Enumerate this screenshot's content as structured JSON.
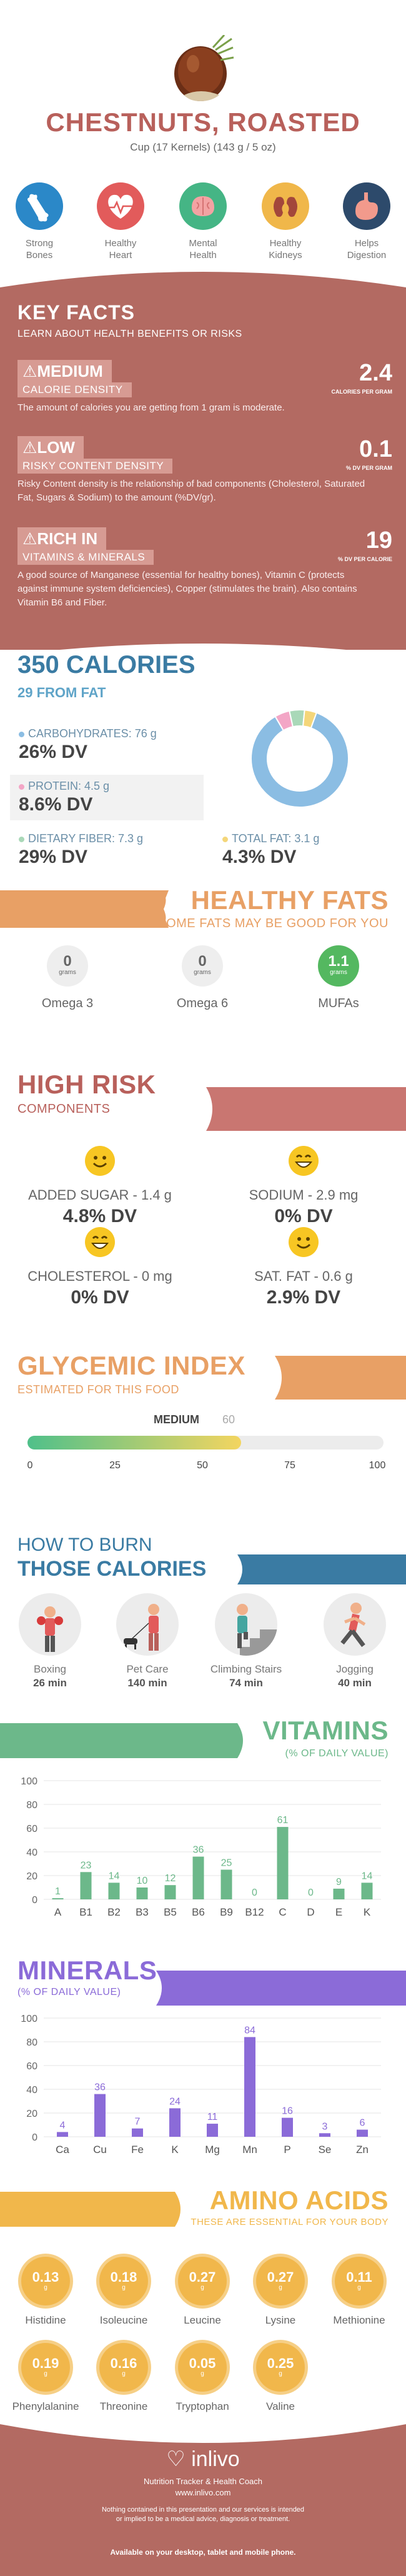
{
  "header": {
    "title": "CHESTNUTS, ROASTED",
    "serving": "Cup (17 Kernels) (143 g / 5 oz)",
    "benefits": [
      {
        "label": "Strong\nBones",
        "icon": "bone-icon",
        "color": "#2b88c8"
      },
      {
        "label": "Healthy\nHeart",
        "icon": "heart-icon",
        "color": "#e25b5b"
      },
      {
        "label": "Mental\nHealth",
        "icon": "brain-icon",
        "color": "#45b585"
      },
      {
        "label": "Healthy\nKidneys",
        "icon": "kidney-icon",
        "color": "#f0b74a"
      },
      {
        "label": "Helps\nDigestion",
        "icon": "stomach-icon",
        "color": "#2d4a6b"
      }
    ]
  },
  "key_facts": {
    "title": "KEY FACTS",
    "subtitle": "LEARN ABOUT HEALTH BENEFITS OR RISKS",
    "facts": [
      {
        "level": "MEDIUM",
        "name": "CALORIE DENSITY",
        "value": "2.4",
        "unit": "CALORIES PER GRAM",
        "desc": "The amount of calories you are getting from 1 gram is moderate."
      },
      {
        "level": "LOW",
        "name": "RISKY CONTENT DENSITY",
        "value": "0.1",
        "unit": "% DV PER GRAM",
        "desc": "Risky Content density is the relationship of bad components (Cholesterol, Saturated Fat, Sugars & Sodium) to the amount (%DV/gr)."
      },
      {
        "level": "RICH  IN",
        "name": "VITAMINS & MINERALS",
        "value": "19",
        "unit": "% DV PER CALORIE",
        "desc": "A good source of Manganese (essential for healthy bones), Vitamin C (protects against immune system deficiencies), Copper (stimulates the brain). Also contains Vitamin B6 and Fiber."
      }
    ]
  },
  "calories": {
    "title": "350 CALORIES",
    "from_fat": "29 FROM FAT",
    "macros": [
      {
        "name": "CARBOHYDRATES: 76 g",
        "dv": "26% DV",
        "color": "#8bbde3"
      },
      {
        "name": "PROTEIN: 4.5 g",
        "dv": "8.6% DV",
        "color": "#f3a6c6"
      },
      {
        "name": "DIETARY FIBER: 7.3 g",
        "dv": "29% DV",
        "color": "#a9d8b8"
      },
      {
        "name": "TOTAL FAT: 3.1 g",
        "dv": "4.3% DV",
        "color": "#f4d67a"
      }
    ]
  },
  "chart_data": [
    {
      "type": "pie",
      "categories": [
        "Carbohydrates",
        "Protein",
        "Dietary Fiber",
        "Total Fat"
      ],
      "values": [
        86,
        5,
        5,
        4
      ]
    },
    {
      "type": "bar",
      "title": "VITAMINS",
      "subtitle": "(% OF DAILY VALUE)",
      "categories": [
        "A",
        "B1",
        "B2",
        "B3",
        "B5",
        "B6",
        "B9",
        "B12",
        "C",
        "D",
        "E",
        "K"
      ],
      "values": [
        1,
        23,
        14,
        10,
        12,
        36,
        25,
        0,
        61,
        0,
        9,
        14
      ],
      "labels": [
        "1",
        "23",
        "14",
        "10",
        "12",
        "36",
        "25",
        "0",
        "61",
        "0",
        "9",
        "14"
      ],
      "ylim": [
        0,
        100
      ],
      "yticks": [
        0,
        20,
        40,
        60,
        80,
        100
      ]
    },
    {
      "type": "bar",
      "title": "MINERALS",
      "subtitle": "(% OF DAILY VALUE)",
      "categories": [
        "Ca",
        "Cu",
        "Fe",
        "K",
        "Mg",
        "Mn",
        "P",
        "Se",
        "Zn"
      ],
      "values": [
        4,
        36,
        7,
        24,
        11,
        84,
        16,
        3,
        6
      ],
      "labels": [
        "4",
        "36",
        "7",
        "24",
        "11",
        "84",
        "16",
        "3",
        "6"
      ],
      "ylim": [
        0,
        100
      ],
      "yticks": [
        0,
        20,
        40,
        60,
        80,
        100
      ]
    },
    {
      "type": "bar",
      "title": "GLYCEMIC INDEX",
      "value": 60,
      "level": "MEDIUM",
      "xlim": [
        0,
        100
      ],
      "xticks": [
        "0",
        "25",
        "50",
        "75",
        "100"
      ]
    }
  ],
  "healthy_fats": {
    "title": "HEALTHY FATS",
    "subtitle": "SOME FATS MAY BE GOOD FOR YOU",
    "items": [
      {
        "name": "Omega 3",
        "value": "0",
        "unit": "grams"
      },
      {
        "name": "Omega 6",
        "value": "0",
        "unit": "grams"
      },
      {
        "name": "MUFAs",
        "value": "1.1",
        "unit": "grams"
      }
    ]
  },
  "high_risk": {
    "title": "HIGH RISK",
    "subtitle": "COMPONENTS",
    "items": [
      {
        "name": "ADDED SUGAR - 1.4 g",
        "dv": "4.8% DV"
      },
      {
        "name": "SODIUM - 2.9 mg",
        "dv": "0% DV"
      },
      {
        "name": "CHOLESTEROL - 0 mg",
        "dv": "0% DV"
      },
      {
        "name": "SAT. FAT - 0.6 g",
        "dv": "2.9% DV"
      }
    ]
  },
  "glycemic": {
    "title": "GLYCEMIC INDEX",
    "subtitle": "ESTIMATED FOR THIS FOOD",
    "level": "MEDIUM",
    "value": "60",
    "ticks": [
      "0",
      "25",
      "50",
      "75",
      "100"
    ]
  },
  "burn": {
    "title1": "HOW TO BURN",
    "title2": "THOSE CALORIES",
    "items": [
      {
        "name": "Boxing",
        "minutes": "26 min",
        "icon": "boxing-icon"
      },
      {
        "name": "Pet Care",
        "minutes": "140 min",
        "icon": "pet-care-icon"
      },
      {
        "name": "Climbing Stairs",
        "minutes": "74 min",
        "icon": "climbing-stairs-icon"
      },
      {
        "name": "Jogging",
        "minutes": "40 min",
        "icon": "jogging-icon"
      }
    ]
  },
  "vitamins": {
    "title": "VITAMINS",
    "subtitle": "(% OF DAILY VALUE)"
  },
  "minerals": {
    "title": "MINERALS",
    "subtitle": "(% OF DAILY VALUE)"
  },
  "amino": {
    "title": "AMINO ACIDS",
    "subtitle": "THESE ARE ESSENTIAL FOR YOUR BODY",
    "items": [
      {
        "name": "Histidine",
        "value": "0.13",
        "unit": "g"
      },
      {
        "name": "Isoleucine",
        "value": "0.18",
        "unit": "g"
      },
      {
        "name": "Leucine",
        "value": "0.27",
        "unit": "g"
      },
      {
        "name": "Lysine",
        "value": "0.27",
        "unit": "g"
      },
      {
        "name": "Methionine",
        "value": "0.11",
        "unit": "g"
      },
      {
        "name": "Phenylalanine",
        "value": "0.19",
        "unit": "g"
      },
      {
        "name": "Threonine",
        "value": "0.16",
        "unit": "g"
      },
      {
        "name": "Tryptophan",
        "value": "0.05",
        "unit": "g"
      },
      {
        "name": "Valine",
        "value": "0.25",
        "unit": "g"
      }
    ]
  },
  "footer": {
    "brand": "inlivo",
    "tagline": "Nutrition Tracker & Health Coach",
    "url": "www.inlivo.com",
    "disclaimer": "Nothing contained in this presentation and our services is intended or implied to be a medical advice, diagnosis or treatment.",
    "available": "Available on your desktop, tablet and mobile phone."
  },
  "colors": {
    "accent_red": "#b8605b",
    "blue": "#3a7ba3",
    "orange": "#e8a065",
    "green": "#6cb88a",
    "purple": "#8b6bd8",
    "gold": "#f1b74b"
  }
}
